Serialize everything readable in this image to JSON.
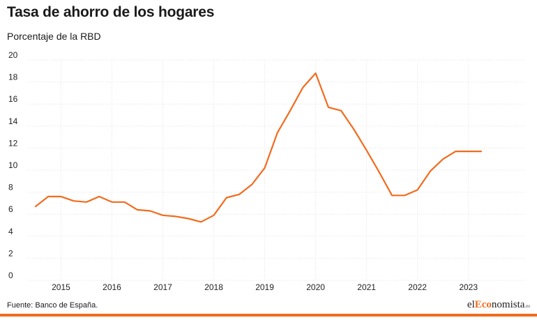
{
  "header": {
    "title": "Tasa de ahorro de los hogares",
    "subtitle": "Porcentaje de la RBD"
  },
  "footer": {
    "source": "Fuente: Banco de España.",
    "logo_prefix": "el",
    "logo_accent": "Eco",
    "logo_main": "nomista",
    "logo_suffix": ".es"
  },
  "colors": {
    "line": "#f26b1d",
    "grid": "#e2e2e2",
    "brand_bar": "#f26b1d"
  },
  "chart_data": {
    "type": "line",
    "title": "Tasa de ahorro de los hogares",
    "subtitle": "Porcentaje de la RBD",
    "xlabel": "",
    "ylabel": "",
    "ylim": [
      0,
      20
    ],
    "yticks": [
      0,
      2,
      4,
      6,
      8,
      10,
      12,
      14,
      16,
      18,
      20
    ],
    "xlim": [
      2014.35,
      2024.1
    ],
    "xticks": [
      {
        "value": 2015.0,
        "label": "2015"
      },
      {
        "value": 2016.0,
        "label": "2016"
      },
      {
        "value": 2017.0,
        "label": "2017"
      },
      {
        "value": 2018.0,
        "label": "2018"
      },
      {
        "value": 2019.0,
        "label": "2019"
      },
      {
        "value": 2020.0,
        "label": "2020"
      },
      {
        "value": 2021.0,
        "label": "2021"
      },
      {
        "value": 2022.0,
        "label": "2022"
      },
      {
        "value": 2023.0,
        "label": "2023"
      }
    ],
    "grid": true,
    "legend": "none",
    "series": [
      {
        "x": [
          2014.5,
          2014.75,
          2015.0,
          2015.25,
          2015.5,
          2015.75,
          2016.0,
          2016.25,
          2016.5,
          2016.75,
          2017.0,
          2017.25,
          2017.5,
          2017.75,
          2018.0,
          2018.25,
          2018.5,
          2018.75,
          2019.0,
          2019.25,
          2019.5,
          2019.75,
          2020.0,
          2020.25,
          2020.5,
          2020.75,
          2021.0,
          2021.25,
          2021.5,
          2021.75,
          2022.0,
          2022.25,
          2022.5,
          2022.75,
          2023.0,
          2023.25
        ],
        "values": [
          6.7,
          7.6,
          7.6,
          7.2,
          7.1,
          7.6,
          7.1,
          7.1,
          6.4,
          6.3,
          5.9,
          5.8,
          5.6,
          5.3,
          5.9,
          7.5,
          7.8,
          8.7,
          10.2,
          13.4,
          15.4,
          17.5,
          18.8,
          15.7,
          15.4,
          13.7,
          11.8,
          9.8,
          7.7,
          7.7,
          8.2,
          9.9,
          11.0,
          11.7,
          11.7,
          11.7
        ]
      }
    ]
  }
}
